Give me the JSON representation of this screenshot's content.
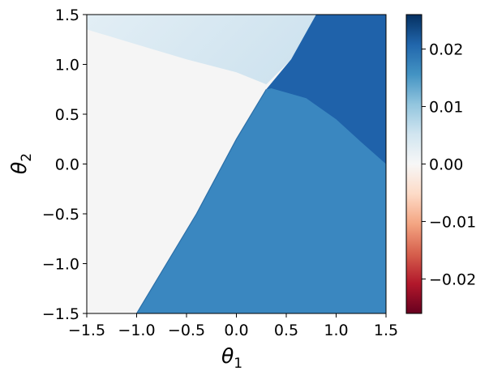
{
  "chart_data": {
    "type": "heatmap",
    "title": "",
    "xlabel": {
      "symbol": "θ",
      "subscript": "1"
    },
    "ylabel": {
      "symbol": "θ",
      "subscript": "2"
    },
    "xlim": [
      -1.5,
      1.5
    ],
    "ylim": [
      -1.5,
      1.5
    ],
    "xticks": [
      -1.5,
      -1.0,
      -0.5,
      0.0,
      0.5,
      1.0,
      1.5
    ],
    "xtick_labels": [
      "−1.5",
      "−1.0",
      "−0.5",
      "0.0",
      "0.5",
      "1.0",
      "1.5"
    ],
    "yticks": [
      -1.5,
      -1.0,
      -0.5,
      0.0,
      0.5,
      1.0,
      1.5
    ],
    "ytick_labels": [
      "−1.5",
      "−1.0",
      "−0.5",
      "0.0",
      "0.5",
      "1.0",
      "1.5"
    ],
    "colormap": "RdBu",
    "color_range": [
      -0.026,
      0.026
    ],
    "colorbar_ticks": [
      0.02,
      0.01,
      0.0,
      -0.01,
      -0.02
    ],
    "colorbar_tick_labels": [
      "0.02",
      "0.01",
      "0.00",
      "−0.01",
      "−0.02"
    ],
    "regions": [
      {
        "name": "upper-left",
        "value": 0.0025,
        "description_points": [
          [
            -1.5,
            1.33
          ],
          [
            -0.5,
            1.0
          ],
          [
            0.3,
            0.8
          ],
          [
            0.6,
            1.5
          ]
        ]
      },
      {
        "name": "left",
        "value": 0.0002
      },
      {
        "name": "upper-right",
        "value": 0.021,
        "description_points": [
          [
            0.35,
            0.8
          ],
          [
            0.8,
            1.5
          ],
          [
            1.5,
            0.0
          ]
        ]
      },
      {
        "name": "lower-right",
        "value": 0.015
      }
    ],
    "boundaries": {
      "left_diagonal": [
        [
          -1.0,
          -1.5
        ],
        [
          -0.4,
          -0.5
        ],
        [
          0.0,
          0.25
        ],
        [
          0.3,
          0.75
        ]
      ],
      "top_curve": [
        [
          -1.5,
          1.35
        ],
        [
          -1.0,
          1.2
        ],
        [
          -0.5,
          1.05
        ],
        [
          0.0,
          0.92
        ],
        [
          0.3,
          0.8
        ]
      ],
      "upper_diagonal": [
        [
          0.3,
          0.75
        ],
        [
          0.55,
          1.05
        ],
        [
          0.8,
          1.5
        ]
      ],
      "right_arc": [
        [
          0.35,
          0.76
        ],
        [
          0.7,
          0.66
        ],
        [
          1.0,
          0.45
        ],
        [
          1.25,
          0.22
        ],
        [
          1.5,
          0.0
        ]
      ]
    }
  }
}
